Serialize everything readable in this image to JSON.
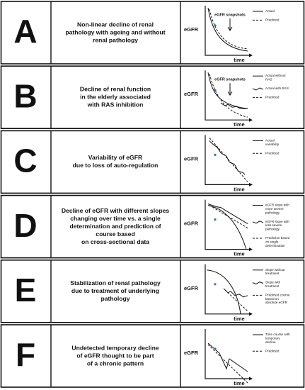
{
  "rows": [
    {
      "letter": "A",
      "description": [
        "Non-linear decline of renal",
        "pathology with ageing and without",
        "renal pathology"
      ],
      "diagram": {
        "y_label": "eGFR",
        "x_label": "time",
        "annotation": "eGFR snapshots",
        "legend": [
          "Actual",
          "Predicted"
        ]
      }
    },
    {
      "letter": "B",
      "description": [
        "Decline of renal function",
        "in the elderly associated",
        "with RAS inhibition"
      ],
      "diagram": {
        "y_label": "eGFR",
        "x_label": "time",
        "annotation": "eGFR snapshots",
        "legend": [
          "Actual without RAS",
          "Actual with RAS",
          "Predicted"
        ]
      }
    },
    {
      "letter": "C",
      "description": [
        "Variability of eGFR",
        "due to loss of auto-regulation"
      ],
      "diagram": {
        "y_label": "eGFR",
        "x_label": "time",
        "legend": [
          "Actual variability",
          "Predicted"
        ]
      }
    },
    {
      "letter": "D",
      "description": [
        "Decline of eGFR with different slopes",
        "changing over time vs. a single",
        "determination and prediction of",
        "course based",
        "on cross-sectional data"
      ],
      "diagram": {
        "y_label": "eGFR",
        "x_label": "time",
        "legend": [
          "eGFR slope with more severe pathology",
          "eGFR slope with less severe pathology",
          "Prediction based on single determination"
        ]
      }
    },
    {
      "letter": "E",
      "description": [
        "Stabilization of renal pathology",
        "due to treatment of underlying",
        "pathology"
      ],
      "diagram": {
        "y_label": "eGFR",
        "x_label": "time",
        "legend": [
          "Slope without treatment",
          "Slope with treatment",
          "Predicted course based on absolute eGFR"
        ]
      }
    },
    {
      "letter": "F",
      "description": [
        "Undetected temporary decline",
        "of eGFR thought to be part",
        "of a chronic pattern"
      ],
      "diagram": {
        "y_label": "eGFR",
        "x_label": "time",
        "legend": [
          "Time course with temporary decline",
          "Predicted"
        ]
      }
    }
  ]
}
